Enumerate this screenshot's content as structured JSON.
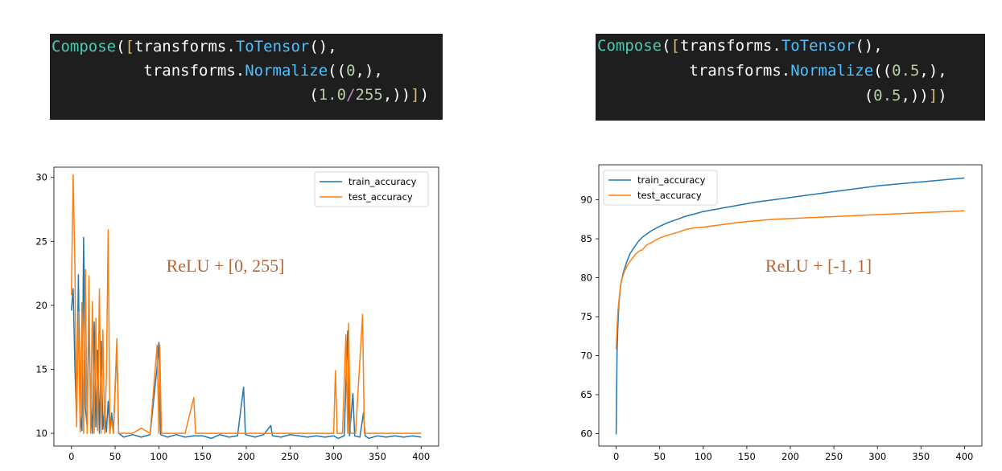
{
  "code_blocks": [
    {
      "lines": [
        [
          [
            "tk-class",
            "Compose"
          ],
          [
            "tk-def",
            "("
          ],
          [
            "tk-brk",
            "["
          ],
          [
            "tk-def",
            "transforms."
          ],
          [
            "tk-func",
            "ToTensor"
          ],
          [
            "tk-def",
            "(),"
          ]
        ],
        [
          [
            "tk-def",
            "          transforms."
          ],
          [
            "tk-func",
            "Normalize"
          ],
          [
            "tk-def",
            "(("
          ],
          [
            "tk-num",
            "0"
          ],
          [
            "tk-def",
            ",),"
          ]
        ],
        [
          [
            "tk-def",
            "                            ("
          ],
          [
            "tk-num",
            "1.0"
          ],
          [
            "tk-op",
            "/"
          ],
          [
            "tk-num",
            "255"
          ],
          [
            "tk-def",
            ",))"
          ],
          [
            "tk-brk",
            "]"
          ],
          [
            "tk-def",
            ")"
          ]
        ]
      ]
    },
    {
      "lines": [
        [
          [
            "tk-class",
            "Compose"
          ],
          [
            "tk-def",
            "("
          ],
          [
            "tk-brk",
            "["
          ],
          [
            "tk-def",
            "transforms."
          ],
          [
            "tk-func",
            "ToTensor"
          ],
          [
            "tk-def",
            "(),"
          ]
        ],
        [
          [
            "tk-def",
            "          transforms."
          ],
          [
            "tk-func",
            "Normalize"
          ],
          [
            "tk-def",
            "(("
          ],
          [
            "tk-num",
            "0.5"
          ],
          [
            "tk-def",
            ",),"
          ]
        ],
        [
          [
            "tk-def",
            "                             ("
          ],
          [
            "tk-num",
            "0.5"
          ],
          [
            "tk-def",
            ",))"
          ],
          [
            "tk-brk",
            "]"
          ],
          [
            "tk-def",
            ")"
          ]
        ]
      ]
    }
  ],
  "colors": {
    "train": "#1f77b4",
    "test": "#ff7f0e",
    "annotation": "#b5653a"
  },
  "chart_data": [
    {
      "type": "line",
      "title": "",
      "annotation": "ReLU + [0, 255]",
      "xlabel": "",
      "ylabel": "",
      "xlim": [
        -20,
        420
      ],
      "ylim": [
        9.0,
        30.8
      ],
      "xticks": [
        0,
        50,
        100,
        150,
        200,
        250,
        300,
        350,
        400
      ],
      "yticks": [
        10,
        15,
        20,
        25,
        30
      ],
      "legend": "top-right",
      "grid": false,
      "series": [
        {
          "name": "train_accuracy",
          "points": [
            [
              0,
              19.6
            ],
            [
              2,
              21.3
            ],
            [
              4,
              15.0
            ],
            [
              6,
              11.2
            ],
            [
              8,
              22.4
            ],
            [
              10,
              11.5
            ],
            [
              12,
              10.2
            ],
            [
              14,
              25.3
            ],
            [
              16,
              12.0
            ],
            [
              18,
              10.5
            ],
            [
              20,
              19.0
            ],
            [
              22,
              12.4
            ],
            [
              24,
              10.0
            ],
            [
              26,
              18.7
            ],
            [
              28,
              10.5
            ],
            [
              30,
              16.5
            ],
            [
              32,
              10.0
            ],
            [
              34,
              17.2
            ],
            [
              36,
              10.3
            ],
            [
              38,
              12.0
            ],
            [
              40,
              10.1
            ],
            [
              42,
              12.5
            ],
            [
              44,
              10.0
            ],
            [
              46,
              11.6
            ],
            [
              48,
              10.0
            ],
            [
              52,
              16.8
            ],
            [
              54,
              10.0
            ],
            [
              60,
              9.7
            ],
            [
              70,
              9.9
            ],
            [
              80,
              9.7
            ],
            [
              90,
              9.9
            ],
            [
              98,
              15.2
            ],
            [
              100,
              17.1
            ],
            [
              102,
              9.9
            ],
            [
              110,
              9.7
            ],
            [
              120,
              9.9
            ],
            [
              130,
              9.7
            ],
            [
              140,
              9.8
            ],
            [
              150,
              9.8
            ],
            [
              160,
              9.6
            ],
            [
              170,
              9.9
            ],
            [
              180,
              9.7
            ],
            [
              190,
              9.8
            ],
            [
              197,
              13.6
            ],
            [
              199,
              9.9
            ],
            [
              210,
              9.7
            ],
            [
              220,
              9.9
            ],
            [
              228,
              10.6
            ],
            [
              230,
              9.8
            ],
            [
              240,
              9.7
            ],
            [
              250,
              9.9
            ],
            [
              260,
              9.8
            ],
            [
              270,
              9.7
            ],
            [
              280,
              9.8
            ],
            [
              290,
              9.7
            ],
            [
              300,
              9.8
            ],
            [
              305,
              9.6
            ],
            [
              312,
              9.8
            ],
            [
              316,
              18.0
            ],
            [
              318,
              9.8
            ],
            [
              322,
              13.1
            ],
            [
              324,
              9.8
            ],
            [
              330,
              9.7
            ],
            [
              334,
              11.6
            ],
            [
              336,
              9.8
            ],
            [
              340,
              9.6
            ],
            [
              350,
              9.8
            ],
            [
              360,
              9.7
            ],
            [
              370,
              9.8
            ],
            [
              380,
              9.7
            ],
            [
              390,
              9.8
            ],
            [
              400,
              9.7
            ]
          ]
        },
        {
          "name": "test_accuracy",
          "points": [
            [
              0,
              20.8
            ],
            [
              2,
              30.2
            ],
            [
              4,
              23.0
            ],
            [
              6,
              10.5
            ],
            [
              8,
              19.5
            ],
            [
              10,
              10.1
            ],
            [
              12,
              20.2
            ],
            [
              14,
              10.0
            ],
            [
              16,
              22.8
            ],
            [
              18,
              10.0
            ],
            [
              20,
              22.3
            ],
            [
              22,
              10.0
            ],
            [
              24,
              20.3
            ],
            [
              26,
              10.0
            ],
            [
              28,
              19.0
            ],
            [
              30,
              10.2
            ],
            [
              32,
              21.3
            ],
            [
              34,
              10.0
            ],
            [
              36,
              18.1
            ],
            [
              38,
              10.0
            ],
            [
              40,
              14.5
            ],
            [
              42,
              25.9
            ],
            [
              44,
              10.0
            ],
            [
              46,
              11.0
            ],
            [
              48,
              10.0
            ],
            [
              52,
              17.4
            ],
            [
              54,
              10.0
            ],
            [
              60,
              10.0
            ],
            [
              70,
              10.0
            ],
            [
              80,
              10.4
            ],
            [
              90,
              10.0
            ],
            [
              98,
              16.9
            ],
            [
              100,
              10.0
            ],
            [
              101,
              16.9
            ],
            [
              103,
              10.0
            ],
            [
              110,
              10.0
            ],
            [
              120,
              10.0
            ],
            [
              130,
              10.0
            ],
            [
              140,
              12.8
            ],
            [
              142,
              10.0
            ],
            [
              150,
              10.0
            ],
            [
              160,
              10.0
            ],
            [
              170,
              10.0
            ],
            [
              180,
              10.0
            ],
            [
              190,
              10.0
            ],
            [
              200,
              10.0
            ],
            [
              210,
              10.0
            ],
            [
              220,
              10.0
            ],
            [
              230,
              10.0
            ],
            [
              240,
              10.0
            ],
            [
              250,
              10.0
            ],
            [
              260,
              10.0
            ],
            [
              270,
              10.0
            ],
            [
              280,
              10.0
            ],
            [
              290,
              10.0
            ],
            [
              300,
              10.0
            ],
            [
              302,
              14.9
            ],
            [
              304,
              10.0
            ],
            [
              310,
              10.0
            ],
            [
              314,
              17.7
            ],
            [
              316,
              10.0
            ],
            [
              317,
              18.6
            ],
            [
              319,
              10.0
            ],
            [
              325,
              10.0
            ],
            [
              333,
              19.3
            ],
            [
              335,
              10.0
            ],
            [
              340,
              10.0
            ],
            [
              350,
              10.0
            ],
            [
              360,
              10.0
            ],
            [
              370,
              10.0
            ],
            [
              380,
              10.0
            ],
            [
              390,
              10.0
            ],
            [
              400,
              10.0
            ]
          ]
        }
      ]
    },
    {
      "type": "line",
      "title": "",
      "annotation": "ReLU + [-1, 1]",
      "xlabel": "",
      "ylabel": "",
      "xlim": [
        -20,
        420
      ],
      "ylim": [
        58.4,
        94.5
      ],
      "xticks": [
        0,
        50,
        100,
        150,
        200,
        250,
        300,
        350,
        400
      ],
      "yticks": [
        60,
        65,
        70,
        75,
        80,
        85,
        90
      ],
      "legend": "top-left",
      "grid": false,
      "series": [
        {
          "name": "train_accuracy",
          "points": [
            [
              0,
              59.9
            ],
            [
              1,
              70.5
            ],
            [
              2,
              74.0
            ],
            [
              3,
              76.5
            ],
            [
              5,
              79.0
            ],
            [
              8,
              80.6
            ],
            [
              12,
              82.0
            ],
            [
              16,
              83.1
            ],
            [
              20,
              83.8
            ],
            [
              25,
              84.6
            ],
            [
              30,
              85.2
            ],
            [
              40,
              86.0
            ],
            [
              50,
              86.6
            ],
            [
              60,
              87.1
            ],
            [
              70,
              87.5
            ],
            [
              80,
              87.9
            ],
            [
              90,
              88.2
            ],
            [
              100,
              88.5
            ],
            [
              120,
              88.9
            ],
            [
              140,
              89.3
            ],
            [
              160,
              89.7
            ],
            [
              180,
              90.0
            ],
            [
              200,
              90.3
            ],
            [
              220,
              90.6
            ],
            [
              240,
              90.9
            ],
            [
              260,
              91.2
            ],
            [
              280,
              91.5
            ],
            [
              300,
              91.8
            ],
            [
              320,
              92.0
            ],
            [
              340,
              92.2
            ],
            [
              360,
              92.4
            ],
            [
              380,
              92.6
            ],
            [
              400,
              92.8
            ]
          ]
        },
        {
          "name": "test_accuracy",
          "points": [
            [
              0,
              70.8
            ],
            [
              1,
              73.5
            ],
            [
              2,
              75.8
            ],
            [
              4,
              78.0
            ],
            [
              6,
              79.7
            ],
            [
              8,
              80.3
            ],
            [
              10,
              81.0
            ],
            [
              14,
              81.8
            ],
            [
              18,
              82.4
            ],
            [
              22,
              83.0
            ],
            [
              26,
              83.4
            ],
            [
              30,
              83.6
            ],
            [
              35,
              84.2
            ],
            [
              40,
              84.5
            ],
            [
              45,
              84.8
            ],
            [
              50,
              85.1
            ],
            [
              60,
              85.5
            ],
            [
              70,
              85.8
            ],
            [
              80,
              86.2
            ],
            [
              90,
              86.4
            ],
            [
              100,
              86.5
            ],
            [
              120,
              86.8
            ],
            [
              140,
              87.1
            ],
            [
              160,
              87.3
            ],
            [
              180,
              87.5
            ],
            [
              200,
              87.6
            ],
            [
              220,
              87.7
            ],
            [
              240,
              87.8
            ],
            [
              260,
              87.9
            ],
            [
              280,
              88.0
            ],
            [
              300,
              88.1
            ],
            [
              320,
              88.2
            ],
            [
              340,
              88.3
            ],
            [
              360,
              88.4
            ],
            [
              380,
              88.5
            ],
            [
              400,
              88.6
            ]
          ]
        }
      ]
    }
  ]
}
